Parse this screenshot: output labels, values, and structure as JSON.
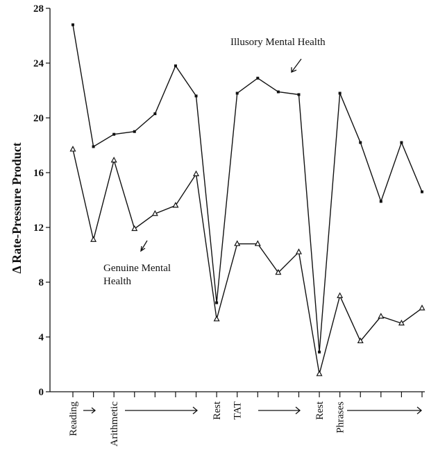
{
  "chart_data": {
    "type": "line",
    "y_label": "Δ Rate-Pressure Product",
    "categories": [
      "Reading",
      null,
      "Arithmetic",
      null,
      null,
      null,
      null,
      "Rest",
      "TAT",
      null,
      null,
      null,
      "Rest",
      "Phrases",
      null,
      null,
      null,
      null
    ],
    "series": [
      {
        "name": "Illusory Mental Health",
        "color": "#111111",
        "marker": "square",
        "values": [
          26.8,
          17.9,
          18.8,
          19.0,
          20.3,
          23.8,
          21.6,
          6.5,
          21.8,
          22.9,
          21.9,
          21.7,
          2.9,
          21.8,
          18.2,
          13.9,
          18.2,
          14.6
        ]
      },
      {
        "name": "Genuine Mental Health",
        "color": "#111111",
        "marker": "triangle",
        "values": [
          17.7,
          11.1,
          16.9,
          11.9,
          13.0,
          13.6,
          15.9,
          5.3,
          10.8,
          10.8,
          8.7,
          10.2,
          1.3,
          7.0,
          3.7,
          5.5,
          5.0,
          6.1
        ]
      }
    ],
    "ylim": [
      0,
      28
    ],
    "yticks": [
      0,
      4,
      8,
      12,
      16,
      20,
      24,
      28
    ],
    "grid": false
  }
}
